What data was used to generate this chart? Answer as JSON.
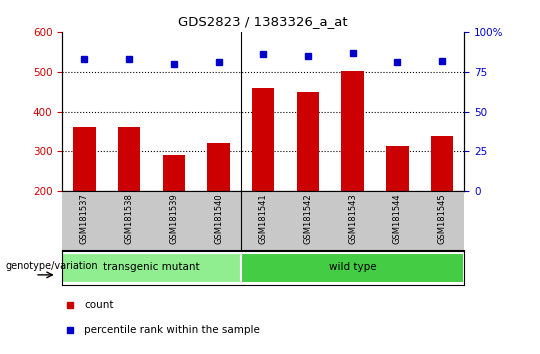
{
  "title": "GDS2823 / 1383326_a_at",
  "samples": [
    "GSM181537",
    "GSM181538",
    "GSM181539",
    "GSM181540",
    "GSM181541",
    "GSM181542",
    "GSM181543",
    "GSM181544",
    "GSM181545"
  ],
  "counts": [
    362,
    362,
    290,
    320,
    458,
    448,
    502,
    314,
    338
  ],
  "percentile_ranks": [
    83,
    83,
    80,
    81,
    86,
    85,
    87,
    81,
    82
  ],
  "groups": [
    {
      "label": "transgenic mutant",
      "start": 0,
      "end": 4,
      "color": "#90EE90"
    },
    {
      "label": "wild type",
      "start": 4,
      "end": 9,
      "color": "#44CC44"
    }
  ],
  "ylim_left": [
    200,
    600
  ],
  "ylim_right": [
    0,
    100
  ],
  "yticks_left": [
    200,
    300,
    400,
    500,
    600
  ],
  "yticks_right": [
    0,
    25,
    50,
    75,
    100
  ],
  "bar_color": "#CC0000",
  "marker_color": "#0000CC",
  "bar_width": 0.5,
  "grid_lines": [
    300,
    400,
    500
  ],
  "tick_area_color": "#c8c8c8",
  "genotype_label": "genotype/variation"
}
